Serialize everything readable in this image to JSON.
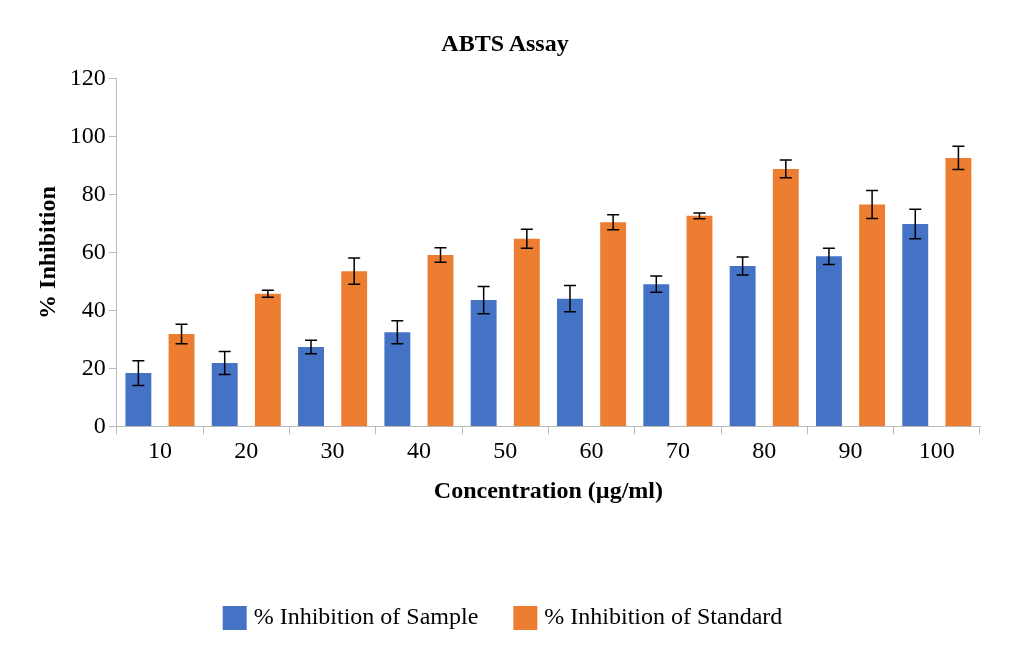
{
  "chart_data": {
    "type": "bar",
    "title": "ABTS Assay",
    "xlabel": "Concentration (µg/ml)",
    "ylabel": "% Inhibition",
    "categories": [
      "10",
      "20",
      "30",
      "40",
      "50",
      "60",
      "70",
      "80",
      "90",
      "100"
    ],
    "series": [
      {
        "name": "% Inhibition of Sample",
        "color": "#4472c4",
        "values": [
          18.4,
          21.9,
          27.4,
          32.5,
          43.6,
          44.1,
          49.1,
          55.4,
          58.7,
          69.9
        ],
        "errors": [
          4.3,
          4,
          2.3,
          4,
          4.7,
          4.5,
          2.8,
          3.1,
          2.8,
          5.1
        ]
      },
      {
        "name": "% Inhibition of Standard",
        "color": "#ed7d31",
        "values": [
          31.9,
          45.8,
          53.6,
          59.2,
          64.8,
          70.5,
          72.7,
          88.9,
          76.6,
          92.7
        ],
        "errors": [
          3.4,
          1.2,
          4.5,
          2.5,
          3.3,
          2.6,
          1,
          3.1,
          4.8,
          4
        ]
      }
    ],
    "ylim": [
      0,
      120
    ],
    "yticks": [
      0,
      20,
      40,
      60,
      80,
      100,
      120
    ],
    "grid": false,
    "legend": "bottom"
  }
}
